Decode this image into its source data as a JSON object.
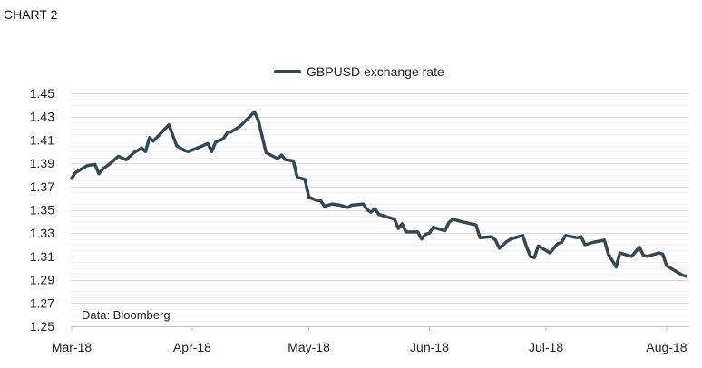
{
  "header": {
    "title": "CHART 2"
  },
  "source_note": "Data: Bloomberg",
  "chart_data": {
    "type": "line",
    "title": "",
    "xlabel": "",
    "ylabel": "",
    "ylim": [
      1.25,
      1.45
    ],
    "y_ticks": [
      "1.25",
      "1.27",
      "1.29",
      "1.31",
      "1.33",
      "1.35",
      "1.37",
      "1.39",
      "1.41",
      "1.43",
      "1.45"
    ],
    "x_ticks": [
      {
        "label": "Mar-18",
        "date": "2018-03-01"
      },
      {
        "label": "Apr-18",
        "date": "2018-04-01"
      },
      {
        "label": "May-18",
        "date": "2018-05-01"
      },
      {
        "label": "Jun-18",
        "date": "2018-06-01"
      },
      {
        "label": "Jul-18",
        "date": "2018-07-01"
      },
      {
        "label": "Aug-18",
        "date": "2018-08-01"
      }
    ],
    "grid": true,
    "legend": "top-center",
    "colors": {
      "line": "#37474F",
      "grid_major": "#d9d9d9",
      "grid_minor": "#efefef"
    },
    "series": [
      {
        "name": "GBPUSD exchange rate",
        "x": [
          "2018-03-01",
          "2018-03-02",
          "2018-03-05",
          "2018-03-07",
          "2018-03-08",
          "2018-03-09",
          "2018-03-11",
          "2018-03-13",
          "2018-03-15",
          "2018-03-17",
          "2018-03-19",
          "2018-03-20",
          "2018-03-21",
          "2018-03-22",
          "2018-03-26",
          "2018-03-28",
          "2018-03-30",
          "2018-03-31",
          "2018-04-03",
          "2018-04-05",
          "2018-04-06",
          "2018-04-07",
          "2018-04-09",
          "2018-04-10",
          "2018-04-11",
          "2018-04-13",
          "2018-04-14",
          "2018-04-17",
          "2018-04-18",
          "2018-04-20",
          "2018-04-23",
          "2018-04-24",
          "2018-04-25",
          "2018-04-27",
          "2018-04-28",
          "2018-04-30",
          "2018-05-01",
          "2018-05-03",
          "2018-05-04",
          "2018-05-05",
          "2018-05-07",
          "2018-05-09",
          "2018-05-11",
          "2018-05-12",
          "2018-05-15",
          "2018-05-16",
          "2018-05-17",
          "2018-05-18",
          "2018-05-19",
          "2018-05-22",
          "2018-05-23",
          "2018-05-24",
          "2018-05-25",
          "2018-05-26",
          "2018-05-29",
          "2018-05-30",
          "2018-05-31",
          "2018-06-01",
          "2018-06-02",
          "2018-06-05",
          "2018-06-06",
          "2018-06-07",
          "2018-06-09",
          "2018-06-13",
          "2018-06-14",
          "2018-06-17",
          "2018-06-18",
          "2018-06-19",
          "2018-06-21",
          "2018-06-22",
          "2018-06-25",
          "2018-06-26",
          "2018-06-27",
          "2018-06-28",
          "2018-06-29",
          "2018-07-02",
          "2018-07-04",
          "2018-07-05",
          "2018-07-06",
          "2018-07-09",
          "2018-07-10",
          "2018-07-11",
          "2018-07-13",
          "2018-07-16",
          "2018-07-17",
          "2018-07-19",
          "2018-07-20",
          "2018-07-23",
          "2018-07-25",
          "2018-07-26",
          "2018-07-27",
          "2018-07-30",
          "2018-07-31",
          "2018-08-01",
          "2018-08-05",
          "2018-08-06"
        ],
        "values": [
          1.377,
          1.382,
          1.388,
          1.389,
          1.381,
          1.385,
          1.39,
          1.396,
          1.393,
          1.399,
          1.403,
          1.4,
          1.412,
          1.409,
          1.423,
          1.405,
          1.401,
          1.4,
          1.404,
          1.407,
          1.4,
          1.408,
          1.411,
          1.416,
          1.417,
          1.421,
          1.424,
          1.434,
          1.427,
          1.399,
          1.394,
          1.397,
          1.393,
          1.392,
          1.378,
          1.376,
          1.361,
          1.358,
          1.358,
          1.353,
          1.355,
          1.354,
          1.352,
          1.354,
          1.355,
          1.35,
          1.348,
          1.351,
          1.346,
          1.343,
          1.342,
          1.334,
          1.338,
          1.331,
          1.331,
          1.325,
          1.329,
          1.33,
          1.335,
          1.332,
          1.339,
          1.342,
          1.34,
          1.337,
          1.326,
          1.327,
          1.324,
          1.317,
          1.323,
          1.325,
          1.328,
          1.318,
          1.31,
          1.309,
          1.319,
          1.313,
          1.321,
          1.322,
          1.328,
          1.326,
          1.327,
          1.32,
          1.322,
          1.324,
          1.312,
          1.301,
          1.313,
          1.31,
          1.318,
          1.311,
          1.31,
          1.313,
          1.312,
          1.302,
          1.294,
          1.293
        ]
      }
    ]
  }
}
